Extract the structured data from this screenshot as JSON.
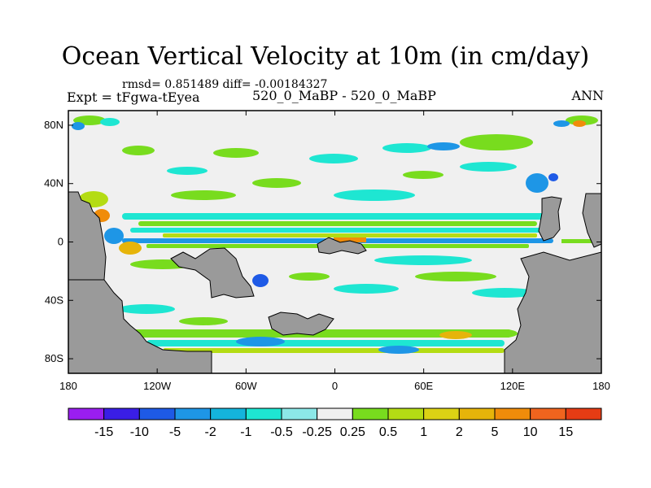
{
  "title": "Ocean Vertical Velocity at 10m (in cm/day)",
  "stats_line": "rmsd= 0.851489 diff= -0.00184327",
  "left_label": "Expt = tFgwa-tEyea",
  "center_label": "520_0_MaBP - 520_0_MaBP",
  "right_label": "ANN",
  "x_ticks": [
    "180",
    "120W",
    "60W",
    "0",
    "60E",
    "120E",
    "180"
  ],
  "y_ticks": [
    "80N",
    "40N",
    "0",
    "40S",
    "80S"
  ],
  "colorbar": {
    "labels": [
      "-15",
      "-10",
      "-5",
      "-2",
      "-1",
      "-0.5",
      "-0.25",
      "0.25",
      "0.5",
      "1",
      "2",
      "5",
      "10",
      "15"
    ],
    "colors": [
      "#9a1ef0",
      "#3a1ee6",
      "#1e5ae6",
      "#1e96e6",
      "#14b4dc",
      "#1ee6d2",
      "#8ce8e8",
      "#f0f0f0",
      "#78dc1e",
      "#b4dc14",
      "#dcd214",
      "#e6b40a",
      "#f08c0a",
      "#f0641e",
      "#e63c14"
    ]
  },
  "colors": {
    "land": "#9a9a9a",
    "ocean_background": "#f0f0f0",
    "frame": "#000000"
  }
}
